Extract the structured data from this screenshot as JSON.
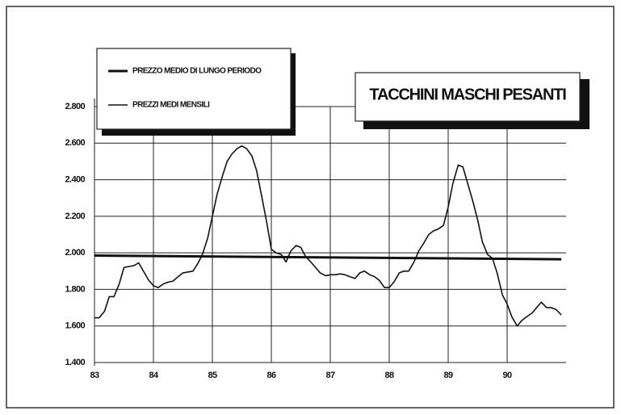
{
  "chart_data": {
    "type": "line",
    "title": "TACCHINI MASCHI PESANTI",
    "xlim": [
      83,
      91
    ],
    "xticks": [
      83,
      84,
      85,
      86,
      87,
      88,
      89,
      90
    ],
    "ylim": [
      1400,
      2800
    ],
    "yticks": [
      {
        "value": 1400,
        "label": "1.400"
      },
      {
        "value": 1600,
        "label": "1.600"
      },
      {
        "value": 1800,
        "label": "1.800"
      },
      {
        "value": 2000,
        "label": "2.000"
      },
      {
        "value": 2200,
        "label": "2.200"
      },
      {
        "value": 2400,
        "label": "2.400"
      },
      {
        "value": 2600,
        "label": "2.600"
      },
      {
        "value": 2800,
        "label": "2.800"
      }
    ],
    "grid": true,
    "series": [
      {
        "name": "PREZZO MEDIO DI LUNGO PERIODO",
        "color": "#111",
        "line_width": 3,
        "x": [
          83,
          90.92
        ],
        "values": [
          1985,
          1965
        ]
      },
      {
        "name": "PREZZI MEDI MENSILI",
        "color": "#111",
        "line_width": 1.6,
        "x": [
          83,
          83.08,
          83.17,
          83.25,
          83.33,
          83.42,
          83.5,
          83.58,
          83.67,
          83.75,
          83.83,
          83.92,
          84,
          84.08,
          84.17,
          84.25,
          84.33,
          84.42,
          84.5,
          84.58,
          84.67,
          84.75,
          84.83,
          84.92,
          85,
          85.08,
          85.17,
          85.25,
          85.33,
          85.42,
          85.5,
          85.58,
          85.67,
          85.75,
          85.83,
          85.92,
          86,
          86.08,
          86.17,
          86.25,
          86.33,
          86.42,
          86.5,
          86.58,
          86.67,
          86.75,
          86.83,
          86.92,
          87,
          87.08,
          87.17,
          87.25,
          87.33,
          87.42,
          87.5,
          87.58,
          87.67,
          87.75,
          87.83,
          87.92,
          88,
          88.08,
          88.17,
          88.25,
          88.33,
          88.42,
          88.5,
          88.58,
          88.67,
          88.75,
          88.83,
          88.92,
          89,
          89.08,
          89.17,
          89.25,
          89.33,
          89.42,
          89.5,
          89.58,
          89.67,
          89.75,
          89.83,
          89.92,
          90,
          90.08,
          90.17,
          90.25,
          90.33,
          90.42,
          90.5,
          90.58,
          90.67,
          90.75,
          90.83,
          90.92
        ],
        "values": [
          1645,
          1645,
          1680,
          1760,
          1760,
          1830,
          1920,
          1925,
          1930,
          1945,
          1900,
          1850,
          1820,
          1810,
          1830,
          1840,
          1845,
          1870,
          1890,
          1895,
          1900,
          1940,
          1990,
          2080,
          2200,
          2320,
          2420,
          2500,
          2540,
          2570,
          2585,
          2570,
          2530,
          2450,
          2320,
          2170,
          2020,
          2000,
          1990,
          1950,
          2010,
          2040,
          2030,
          1980,
          1950,
          1920,
          1890,
          1875,
          1880,
          1880,
          1885,
          1880,
          1870,
          1860,
          1890,
          1900,
          1880,
          1870,
          1850,
          1810,
          1810,
          1840,
          1890,
          1900,
          1900,
          1950,
          2010,
          2050,
          2100,
          2120,
          2130,
          2150,
          2250,
          2380,
          2480,
          2470,
          2380,
          2280,
          2180,
          2060,
          1990,
          1970,
          1890,
          1770,
          1720,
          1650,
          1600,
          1630,
          1650,
          1670,
          1700,
          1730,
          1700,
          1700,
          1690,
          1660
        ]
      }
    ]
  }
}
